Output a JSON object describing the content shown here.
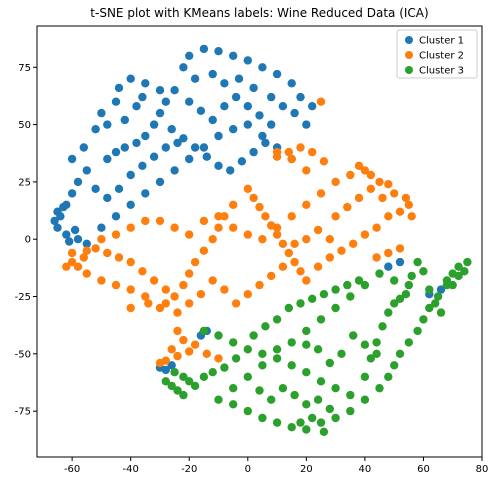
{
  "chart_data": {
    "type": "scatter",
    "title": "t-SNE plot with KMeans labels: Wine Reduced Data (ICA)",
    "xlabel": "",
    "ylabel": "",
    "xlim": [
      -72,
      80
    ],
    "ylim": [
      -95,
      93
    ],
    "xticks": [
      -60,
      -40,
      -20,
      0,
      20,
      40,
      60,
      80
    ],
    "yticks": [
      -75,
      -50,
      -25,
      0,
      25,
      50,
      75
    ],
    "grid": false,
    "legend_position": "top-right",
    "series": [
      {
        "name": "Cluster 1",
        "color": "#1f77b4",
        "points": [
          [
            -20,
            80
          ],
          [
            -15,
            83
          ],
          [
            -10,
            82
          ],
          [
            -5,
            80
          ],
          [
            0,
            78
          ],
          [
            5,
            75
          ],
          [
            10,
            72
          ],
          [
            15,
            68
          ],
          [
            18,
            62
          ],
          [
            22,
            58
          ],
          [
            -22,
            75
          ],
          [
            -18,
            70
          ],
          [
            -12,
            72
          ],
          [
            -8,
            68
          ],
          [
            -3,
            70
          ],
          [
            2,
            66
          ],
          [
            8,
            62
          ],
          [
            12,
            58
          ],
          [
            16,
            55
          ],
          [
            20,
            50
          ],
          [
            -25,
            65
          ],
          [
            -28,
            60
          ],
          [
            -30,
            55
          ],
          [
            -32,
            50
          ],
          [
            -35,
            45
          ],
          [
            -38,
            42
          ],
          [
            -42,
            40
          ],
          [
            -45,
            38
          ],
          [
            -48,
            35
          ],
          [
            -55,
            30
          ],
          [
            -58,
            25
          ],
          [
            -60,
            20
          ],
          [
            -62,
            15
          ],
          [
            -64,
            10
          ],
          [
            -65,
            5
          ],
          [
            -62,
            2
          ],
          [
            -58,
            0
          ],
          [
            -55,
            -2
          ],
          [
            -50,
            5
          ],
          [
            -45,
            10
          ],
          [
            -40,
            15
          ],
          [
            -35,
            20
          ],
          [
            -30,
            25
          ],
          [
            -25,
            30
          ],
          [
            -20,
            35
          ],
          [
            -15,
            40
          ],
          [
            -10,
            45
          ],
          [
            -5,
            48
          ],
          [
            0,
            50
          ],
          [
            5,
            45
          ],
          [
            10,
            40
          ],
          [
            15,
            35
          ],
          [
            -40,
            70
          ],
          [
            -35,
            68
          ],
          [
            -30,
            65
          ],
          [
            -45,
            60
          ],
          [
            -50,
            55
          ],
          [
            -52,
            48
          ],
          [
            -48,
            50
          ],
          [
            -42,
            52
          ],
          [
            -38,
            58
          ],
          [
            -36,
            62
          ],
          [
            -44,
            66
          ],
          [
            -20,
            60
          ],
          [
            -16,
            56
          ],
          [
            -12,
            52
          ],
          [
            -8,
            58
          ],
          [
            -4,
            62
          ],
          [
            0,
            58
          ],
          [
            4,
            54
          ],
          [
            8,
            50
          ],
          [
            -26,
            48
          ],
          [
            -22,
            44
          ],
          [
            -18,
            40
          ],
          [
            -14,
            36
          ],
          [
            -10,
            32
          ],
          [
            -6,
            30
          ],
          [
            -2,
            34
          ],
          [
            2,
            38
          ],
          [
            6,
            42
          ],
          [
            -56,
            40
          ],
          [
            -60,
            35
          ],
          [
            -52,
            22
          ],
          [
            -48,
            18
          ],
          [
            -44,
            22
          ],
          [
            -40,
            28
          ],
          [
            -36,
            32
          ],
          [
            -32,
            36
          ],
          [
            -28,
            40
          ],
          [
            -24,
            42
          ],
          [
            -65,
            12
          ],
          [
            -66,
            8
          ],
          [
            -63,
            14
          ],
          [
            -61,
            -1
          ],
          [
            -59,
            4
          ],
          [
            -28,
            -57
          ],
          [
            -26,
            -55
          ],
          [
            -30,
            -56
          ],
          [
            -16,
            -42
          ],
          [
            -14,
            -40
          ],
          [
            62,
            -24
          ],
          [
            66,
            -22
          ],
          [
            48,
            -12
          ],
          [
            52,
            -10
          ]
        ]
      },
      {
        "name": "Cluster 2",
        "color": "#ff7f0e",
        "points": [
          [
            0,
            22
          ],
          [
            2,
            18
          ],
          [
            4,
            14
          ],
          [
            6,
            10
          ],
          [
            8,
            6
          ],
          [
            10,
            2
          ],
          [
            12,
            -2
          ],
          [
            14,
            -6
          ],
          [
            16,
            -10
          ],
          [
            18,
            -14
          ],
          [
            20,
            -18
          ],
          [
            -5,
            15
          ],
          [
            -8,
            10
          ],
          [
            -10,
            5
          ],
          [
            -12,
            0
          ],
          [
            -15,
            -5
          ],
          [
            -18,
            -10
          ],
          [
            -20,
            -15
          ],
          [
            -22,
            -20
          ],
          [
            -25,
            -25
          ],
          [
            -28,
            -28
          ],
          [
            -30,
            -30
          ],
          [
            -35,
            -25
          ],
          [
            -40,
            -22
          ],
          [
            -45,
            -20
          ],
          [
            -50,
            -18
          ],
          [
            -55,
            -15
          ],
          [
            -58,
            -12
          ],
          [
            -60,
            -10
          ],
          [
            -55,
            -5
          ],
          [
            -50,
            0
          ],
          [
            -45,
            2
          ],
          [
            -40,
            5
          ],
          [
            -35,
            8
          ],
          [
            -30,
            8
          ],
          [
            -25,
            5
          ],
          [
            -20,
            2
          ],
          [
            -15,
            8
          ],
          [
            -10,
            10
          ],
          [
            -5,
            5
          ],
          [
            0,
            2
          ],
          [
            5,
            0
          ],
          [
            10,
            5
          ],
          [
            15,
            10
          ],
          [
            20,
            15
          ],
          [
            25,
            20
          ],
          [
            30,
            25
          ],
          [
            35,
            28
          ],
          [
            40,
            30
          ],
          [
            45,
            25
          ],
          [
            50,
            20
          ],
          [
            55,
            15
          ],
          [
            48,
            10
          ],
          [
            44,
            5
          ],
          [
            40,
            2
          ],
          [
            36,
            -2
          ],
          [
            32,
            -5
          ],
          [
            28,
            -8
          ],
          [
            24,
            -12
          ],
          [
            20,
            30
          ],
          [
            15,
            35
          ],
          [
            10,
            38
          ],
          [
            22,
            38
          ],
          [
            26,
            34
          ],
          [
            30,
            10
          ],
          [
            34,
            14
          ],
          [
            38,
            18
          ],
          [
            42,
            22
          ],
          [
            46,
            18
          ],
          [
            52,
            12
          ],
          [
            56,
            10
          ],
          [
            28,
            0
          ],
          [
            24,
            4
          ],
          [
            20,
            0
          ],
          [
            16,
            -2
          ],
          [
            12,
            -12
          ],
          [
            8,
            -16
          ],
          [
            4,
            -20
          ],
          [
            0,
            -24
          ],
          [
            -4,
            -28
          ],
          [
            -8,
            -22
          ],
          [
            -12,
            -18
          ],
          [
            -16,
            -24
          ],
          [
            -20,
            -28
          ],
          [
            -24,
            -32
          ],
          [
            -32,
            -18
          ],
          [
            -36,
            -14
          ],
          [
            -40,
            -10
          ],
          [
            -44,
            -8
          ],
          [
            -48,
            -6
          ],
          [
            -52,
            -4
          ],
          [
            -56,
            -8
          ],
          [
            -62,
            -12
          ],
          [
            -60,
            -6
          ],
          [
            -40,
            -30
          ],
          [
            -34,
            -28
          ],
          [
            -28,
            -22
          ],
          [
            -24,
            -40
          ],
          [
            -22,
            -44
          ],
          [
            -26,
            -48
          ],
          [
            -18,
            -46
          ],
          [
            -14,
            -50
          ],
          [
            -10,
            -52
          ],
          [
            -28,
            -53
          ],
          [
            -24,
            -51
          ],
          [
            -20,
            -49
          ],
          [
            -30,
            -54
          ],
          [
            25,
            60
          ],
          [
            18,
            40
          ],
          [
            14,
            38
          ],
          [
            10,
            36
          ],
          [
            38,
            32
          ],
          [
            42,
            28
          ],
          [
            48,
            24
          ],
          [
            54,
            18
          ],
          [
            44,
            -8
          ],
          [
            48,
            -6
          ],
          [
            52,
            -4
          ]
        ]
      },
      {
        "name": "Cluster 3",
        "color": "#2ca02c",
        "points": [
          [
            -15,
            -40
          ],
          [
            -10,
            -42
          ],
          [
            -5,
            -45
          ],
          [
            0,
            -48
          ],
          [
            5,
            -50
          ],
          [
            10,
            -52
          ],
          [
            15,
            -55
          ],
          [
            20,
            -58
          ],
          [
            25,
            -62
          ],
          [
            30,
            -65
          ],
          [
            35,
            -68
          ],
          [
            40,
            -70
          ],
          [
            45,
            -65
          ],
          [
            48,
            -60
          ],
          [
            50,
            -55
          ],
          [
            52,
            -50
          ],
          [
            55,
            -45
          ],
          [
            58,
            -40
          ],
          [
            60,
            -35
          ],
          [
            62,
            -30
          ],
          [
            65,
            -25
          ],
          [
            68,
            -20
          ],
          [
            70,
            -15
          ],
          [
            72,
            -12
          ],
          [
            75,
            -10
          ],
          [
            68,
            -18
          ],
          [
            62,
            -22
          ],
          [
            55,
            -20
          ],
          [
            50,
            -18
          ],
          [
            45,
            -15
          ],
          [
            40,
            -20
          ],
          [
            35,
            -25
          ],
          [
            30,
            -30
          ],
          [
            25,
            -35
          ],
          [
            20,
            -40
          ],
          [
            15,
            -45
          ],
          [
            10,
            -48
          ],
          [
            5,
            -55
          ],
          [
            0,
            -60
          ],
          [
            -5,
            -65
          ],
          [
            -10,
            -70
          ],
          [
            -5,
            -72
          ],
          [
            0,
            -75
          ],
          [
            5,
            -78
          ],
          [
            10,
            -80
          ],
          [
            15,
            -82
          ],
          [
            20,
            -83
          ],
          [
            25,
            -80
          ],
          [
            30,
            -78
          ],
          [
            35,
            -75
          ],
          [
            40,
            -60
          ],
          [
            42,
            -52
          ],
          [
            44,
            -45
          ],
          [
            46,
            -38
          ],
          [
            48,
            -32
          ],
          [
            50,
            -28
          ],
          [
            52,
            -26
          ],
          [
            54,
            -24
          ],
          [
            -25,
            -58
          ],
          [
            -22,
            -60
          ],
          [
            -20,
            -62
          ],
          [
            -18,
            -64
          ],
          [
            -15,
            -60
          ],
          [
            -12,
            -58
          ],
          [
            -8,
            -56
          ],
          [
            -4,
            -52
          ],
          [
            2,
            -42
          ],
          [
            6,
            -38
          ],
          [
            10,
            -35
          ],
          [
            14,
            -30
          ],
          [
            18,
            -28
          ],
          [
            22,
            -26
          ],
          [
            26,
            -24
          ],
          [
            30,
            -22
          ],
          [
            34,
            -20
          ],
          [
            38,
            -18
          ],
          [
            12,
            -65
          ],
          [
            16,
            -68
          ],
          [
            20,
            -72
          ],
          [
            24,
            -70
          ],
          [
            28,
            -74
          ],
          [
            8,
            -70
          ],
          [
            4,
            -66
          ],
          [
            36,
            -42
          ],
          [
            40,
            -46
          ],
          [
            44,
            -50
          ],
          [
            32,
            -50
          ],
          [
            28,
            -54
          ],
          [
            24,
            -48
          ],
          [
            20,
            -46
          ],
          [
            64,
            -28
          ],
          [
            66,
            -32
          ],
          [
            70,
            -20
          ],
          [
            72,
            -16
          ],
          [
            74,
            -14
          ],
          [
            60,
            -14
          ],
          [
            56,
            -16
          ],
          [
            58,
            -10
          ],
          [
            -28,
            -62
          ],
          [
            -26,
            -64
          ],
          [
            -24,
            -66
          ],
          [
            -22,
            -68
          ],
          [
            22,
            -78
          ],
          [
            26,
            -84
          ],
          [
            18,
            -80
          ]
        ]
      }
    ]
  }
}
